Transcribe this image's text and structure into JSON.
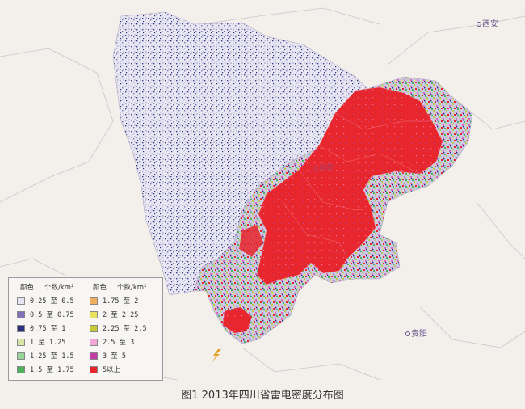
{
  "cities": [
    {
      "name": "西安"
    },
    {
      "name": "贵阳"
    },
    {
      "name": "成都"
    }
  ],
  "legend": {
    "header_color": "颜色",
    "header_count": "个数/km²",
    "items": [
      {
        "label": "0.25 至 0.5",
        "color": "#e8e3f0"
      },
      {
        "label": "0.5 至 0.75",
        "color": "#7f72b8"
      },
      {
        "label": "0.75 至 1",
        "color": "#2a2f7e"
      },
      {
        "label": "1 至 1.25",
        "color": "#d8e6a8"
      },
      {
        "label": "1.25 至 1.5",
        "color": "#98d49a"
      },
      {
        "label": "1.5 至 1.75",
        "color": "#4db05a"
      },
      {
        "label": "1.75 至 2",
        "color": "#f0b060"
      },
      {
        "label": "2 至 2.25",
        "color": "#e8e060"
      },
      {
        "label": "2.25 至 2.5",
        "color": "#c8c83a"
      },
      {
        "label": "2.5 至 3",
        "color": "#f0a8d8"
      },
      {
        "label": "3 至 5",
        "color": "#c040a8"
      },
      {
        "label": "5以上",
        "color": "#e8242c"
      }
    ]
  },
  "caption": "图1  2013年四川省雷电密度分布图"
}
